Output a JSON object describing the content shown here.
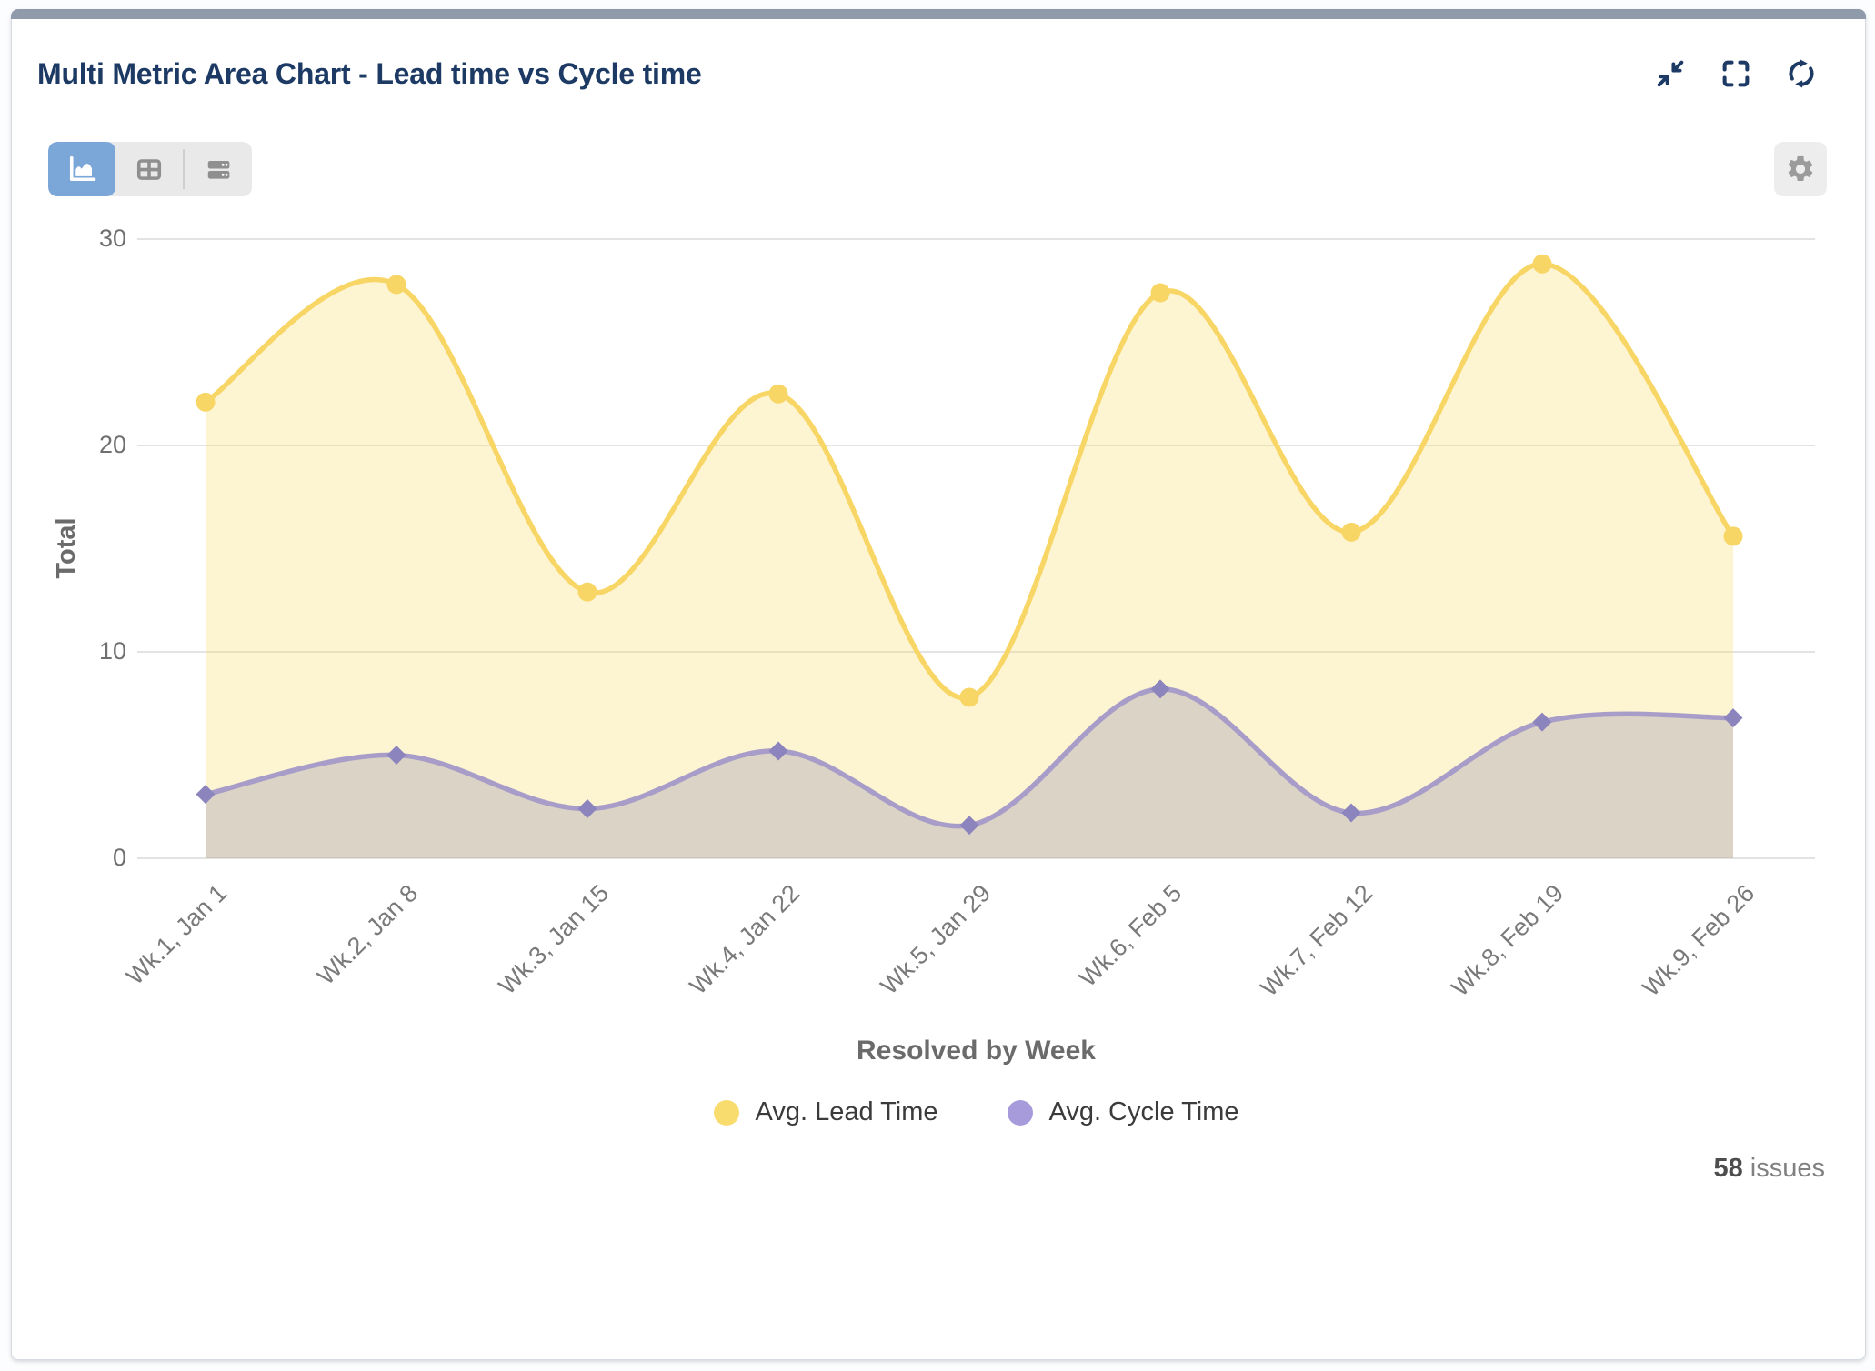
{
  "header": {
    "title": "Multi Metric Area Chart - Lead time vs Cycle time",
    "action_icons": [
      "minimize-icon",
      "fullscreen-icon",
      "refresh-icon"
    ],
    "icon_color": "#1c3a63"
  },
  "toolbar": {
    "view_options": [
      {
        "id": "area-chart-view",
        "icon": "area-chart-icon",
        "selected": true
      },
      {
        "id": "table-view",
        "icon": "table-icon",
        "selected": false
      },
      {
        "id": "rows-view",
        "icon": "rows-icon",
        "selected": false
      }
    ],
    "selected_color": "#7ba6d8",
    "settings_icon": "gear-icon"
  },
  "chart_data": {
    "type": "area",
    "title": "Multi Metric Area Chart - Lead time vs Cycle time",
    "categories": [
      "Wk.1, Jan 1",
      "Wk.2, Jan 8",
      "Wk.3, Jan 15",
      "Wk.4, Jan 22",
      "Wk.5, Jan 29",
      "Wk.6, Feb 5",
      "Wk.7, Feb 12",
      "Wk.8, Feb 19",
      "Wk.9, Feb 26"
    ],
    "series": [
      {
        "name": "Avg. Lead Time",
        "color": "#f8d666",
        "fill_color": "rgba(249,218,105,0.30)",
        "marker": "circle",
        "legend_color": "#f9dc6e",
        "values": [
          22.1,
          27.8,
          12.9,
          22.5,
          7.8,
          27.4,
          15.8,
          28.8,
          15.6
        ]
      },
      {
        "name": "Avg. Cycle Time",
        "color": "#a79dc8",
        "fill_color": "rgba(150,142,175,0.32)",
        "marker": "diamond",
        "legend_color": "#a79bdc",
        "values": [
          3.1,
          5,
          2.4,
          5.2,
          1.6,
          8.2,
          2.2,
          6.6,
          6.8
        ]
      }
    ],
    "xlabel": "Resolved by Week",
    "ylabel": "Total",
    "ylim": [
      0,
      30
    ],
    "yticks": [
      0,
      10,
      20,
      30
    ],
    "grid": true,
    "gridline_color": "#e3e3e3",
    "legend_position": "bottom"
  },
  "footer": {
    "issue_count": "58",
    "issue_label": "issues"
  }
}
